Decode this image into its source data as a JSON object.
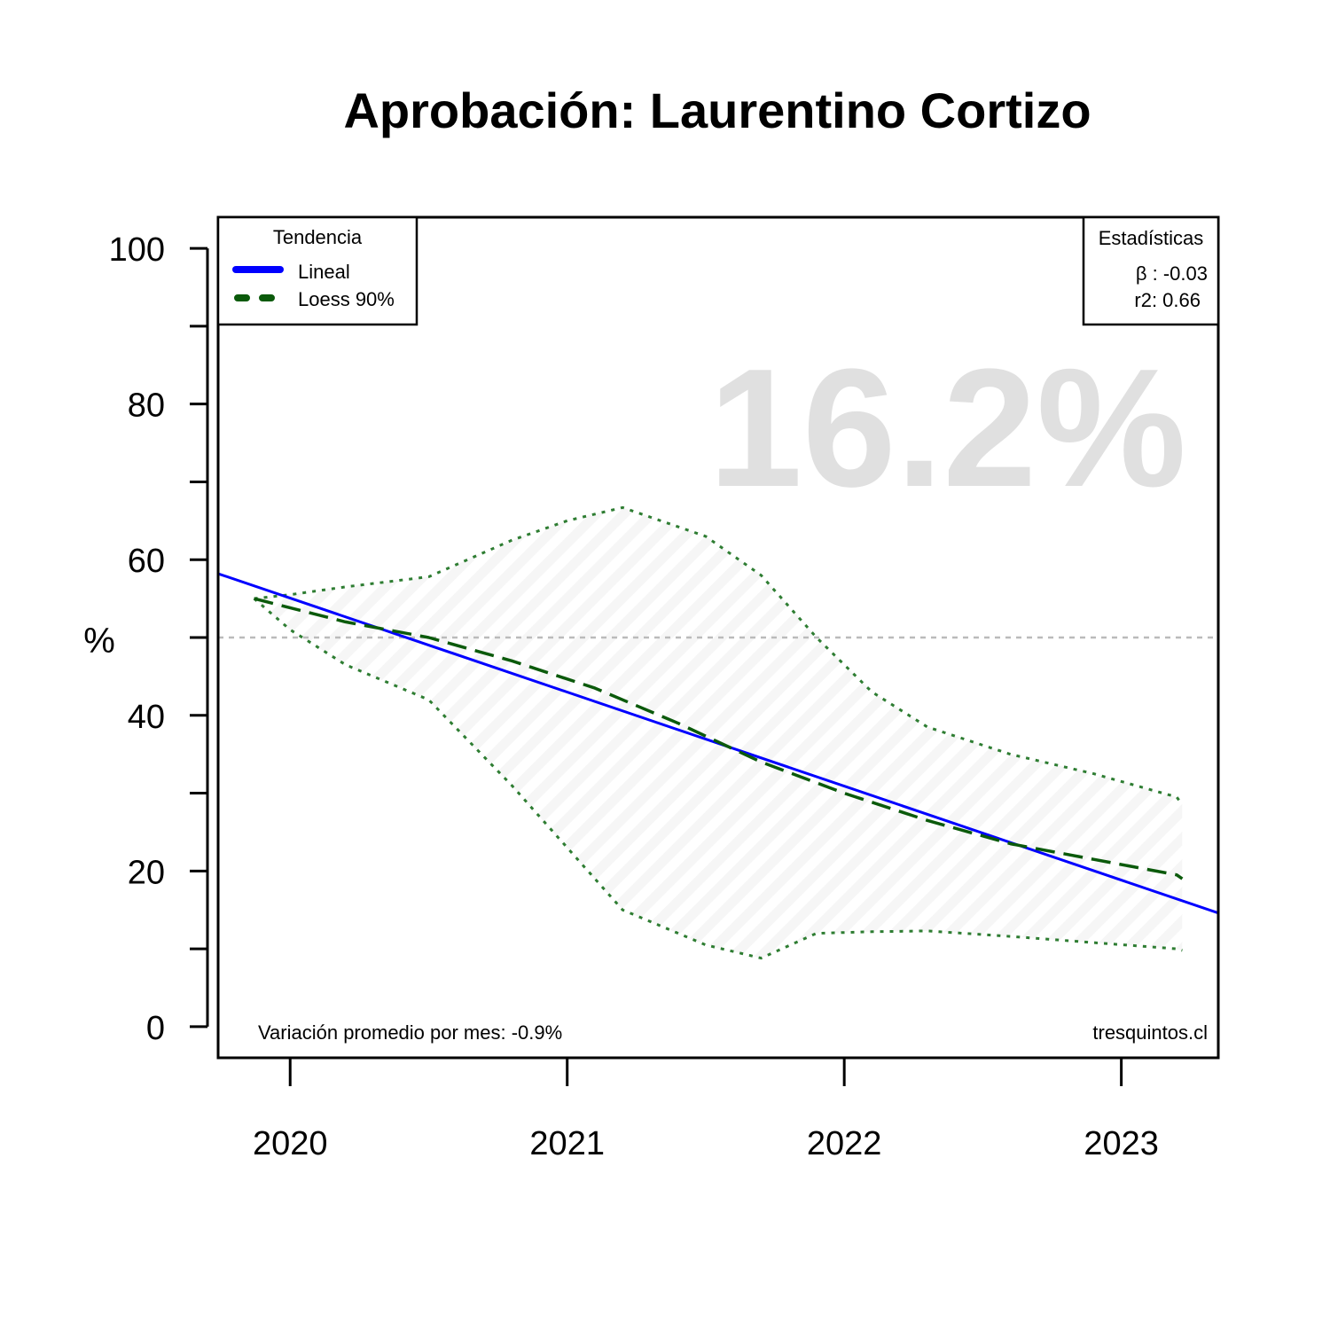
{
  "chart_data": {
    "type": "line",
    "title": "Aprobación: Laurentino Cortizo",
    "ylabel": "%",
    "xlabel": "",
    "ylim": [
      -4,
      104
    ],
    "xlim": [
      2019.74,
      2023.35
    ],
    "yticks": [
      0,
      20,
      40,
      60,
      80,
      100
    ],
    "yticks_minor": [
      10,
      30,
      50,
      70,
      90
    ],
    "xticks": [
      2020,
      2021,
      2022,
      2023
    ],
    "reference_line": 50,
    "big_value": "16.2%",
    "legend_trend": {
      "title": "Tendencia",
      "items": [
        "Lineal",
        "Loess 90%"
      ]
    },
    "legend_stats": {
      "title": "Estadísticas",
      "beta": "β : -0.03",
      "r2": "r2: 0.66"
    },
    "footer_left": "Variación promedio por mes: -0.9%",
    "footer_right": "tresquintos.cl",
    "series": [
      {
        "name": "Lineal",
        "x": [
          2019.74,
          2023.35
        ],
        "values": [
          58.2,
          14.6
        ]
      },
      {
        "name": "Loess 90%",
        "x": [
          2019.87,
          2020.2,
          2020.5,
          2020.8,
          2021.1,
          2021.4,
          2021.7,
          2022.0,
          2022.3,
          2022.6,
          2022.9,
          2023.2,
          2023.22
        ],
        "values": [
          55,
          52,
          50,
          47,
          43.5,
          39,
          34,
          30,
          26.5,
          23.5,
          21.5,
          19.5,
          19
        ]
      }
    ],
    "band": {
      "x": [
        2019.87,
        2020.0,
        2020.2,
        2020.5,
        2020.8,
        2021.0,
        2021.2,
        2021.5,
        2021.7,
        2021.9,
        2022.1,
        2022.3,
        2022.6,
        2022.9,
        2023.2,
        2023.22
      ],
      "upper": [
        55,
        55.5,
        56.5,
        57.8,
        62.5,
        65,
        66.7,
        63,
        58,
        50,
        43,
        38.5,
        35,
        32.5,
        29.5,
        28.5
      ],
      "lower": [
        55,
        51,
        46.5,
        42,
        31,
        23,
        15,
        10.5,
        8.8,
        12,
        12.2,
        12.3,
        11.6,
        10.8,
        10,
        9.8
      ]
    },
    "colors": {
      "linear": "#0000ff",
      "loess": "#0b5a0b",
      "band_line": "#2e7d32",
      "reference": "#bbbbbb",
      "big_value": "#e0e0e0"
    }
  }
}
